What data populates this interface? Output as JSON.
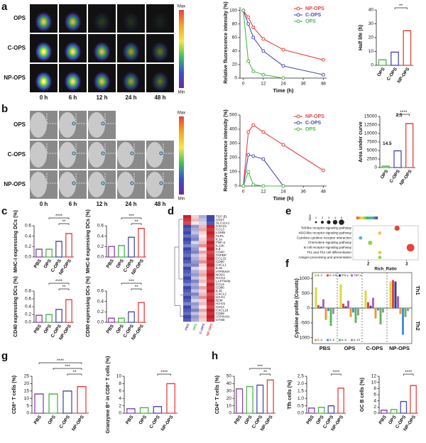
{
  "panel_labels": [
    "a",
    "b",
    "c",
    "d",
    "e",
    "f",
    "g",
    "h"
  ],
  "image_panels": [
    {
      "rows": [
        "OPS",
        "C-OPS",
        "NP-OPS"
      ],
      "columns": [
        "0 h",
        "6 h",
        "12 h",
        "24 h",
        "48 h"
      ],
      "colorbar": [
        "Max",
        "Min"
      ]
    },
    {
      "rows": [
        "OPS",
        "C-OPS",
        "NP-OPS"
      ],
      "columns": [
        "0 h",
        "6 h",
        "12 h",
        "24 h",
        "48 h"
      ],
      "colorbar": [
        "Max",
        "Min"
      ]
    }
  ],
  "chart_data": [
    {
      "type": "line",
      "ylabel": "Relative fluorescence intensity (%)",
      "xlabel": "Time (h)",
      "x": [
        0,
        3,
        6,
        12,
        24,
        48
      ],
      "xlim": [
        -2,
        50
      ],
      "xticks": [
        0,
        12,
        24,
        36,
        48
      ],
      "ylim": [
        0,
        105
      ],
      "yticks": [
        0,
        20,
        40,
        60,
        80,
        100
      ],
      "legend": "top-right",
      "series": [
        {
          "name": "NP-OPS",
          "color": "#e8413f",
          "values": [
            100,
            90,
            75,
            58,
            42,
            27
          ]
        },
        {
          "name": "C-OPS",
          "color": "#4a4fb0",
          "values": [
            100,
            80,
            60,
            40,
            18,
            5
          ]
        },
        {
          "name": "OPS",
          "color": "#4cb848",
          "values": [
            100,
            25,
            10,
            5,
            0,
            null
          ]
        }
      ]
    },
    {
      "type": "bar",
      "ylabel": "Half life (h)",
      "categories": [
        "OPS",
        "C-OPS",
        "NP-OPS"
      ],
      "colors": [
        "#4cb848",
        "#4a4fb0",
        "#e8413f"
      ],
      "values": [
        4,
        9.5,
        25
      ],
      "ylim": [
        0,
        40
      ],
      "yticks": [
        0,
        10,
        20,
        30,
        40
      ],
      "annotations": [
        "**"
      ]
    },
    {
      "type": "line",
      "ylabel": "Relative fluorescence intensity (%)",
      "xlabel": "Time (h)",
      "x": [
        0,
        3,
        6,
        12,
        24,
        48
      ],
      "xlim": [
        -2,
        50
      ],
      "xticks": [
        0,
        12,
        24,
        36,
        48
      ],
      "ylim": [
        0,
        500
      ],
      "yticks": [
        0,
        100,
        200,
        300,
        400,
        500
      ],
      "legend": "top-right",
      "series": [
        {
          "name": "NP-OPS",
          "color": "#e8413f",
          "values": [
            0,
            380,
            430,
            380,
            290,
            110
          ]
        },
        {
          "name": "C-OPS",
          "color": "#4a4fb0",
          "values": [
            0,
            220,
            210,
            190,
            0,
            null
          ]
        },
        {
          "name": "OPS",
          "color": "#4cb848",
          "values": [
            0,
            100,
            10,
            0,
            0,
            null
          ]
        }
      ]
    },
    {
      "type": "bar",
      "ylabel": "Area under curve",
      "categories": [
        "OPS",
        "C-OPS",
        "NP-OPS"
      ],
      "colors": [
        "#4cb848",
        "#4a4fb0",
        "#e8413f"
      ],
      "values": [
        400,
        4900,
        12900
      ],
      "ylim": [
        0,
        15000
      ],
      "yticks": [
        0,
        2500,
        5000,
        7500,
        10000,
        12500,
        15000
      ],
      "annotations": [
        "****"
      ],
      "notes": [
        "14.5",
        "2.5"
      ]
    },
    {
      "type": "bar",
      "ylabel": "MHC-I expressing DCs (%)",
      "categories": [
        "PBS",
        "OPS",
        "C-OPS",
        "NP-OPS"
      ],
      "colors": [
        "#8e44ad",
        "#4cb848",
        "#4a4fb0",
        "#e8413f"
      ],
      "values": [
        0.15,
        0.15,
        0.3,
        0.45
      ],
      "ylim": [
        0,
        0.6
      ],
      "yticks": [
        {
          "value": 0,
          "label": "0.0"
        },
        0.2,
        0.4,
        0.6
      ],
      "annotations": [
        "**",
        "****"
      ]
    },
    {
      "type": "bar",
      "ylabel": "MHC-II expressing DCs (%)",
      "categories": [
        "PBS",
        "OPS",
        "C-OPS",
        "NP-OPS"
      ],
      "colors": [
        "#8e44ad",
        "#4cb848",
        "#4a4fb0",
        "#e8413f"
      ],
      "values": [
        0.2,
        0.22,
        0.38,
        0.55
      ],
      "ylim": [
        0,
        0.6
      ],
      "yticks": [
        {
          "value": 0,
          "label": "0.0"
        },
        0.2,
        0.4,
        0.6
      ],
      "annotations": [
        "**",
        "***"
      ]
    },
    {
      "type": "bar",
      "ylabel": "CD40 expressing DCs (%)",
      "categories": [
        "PBS",
        "OPS",
        "C-OPS",
        "NP-OPS"
      ],
      "colors": [
        "#8e44ad",
        "#4cb848",
        "#4a4fb0",
        "#e8413f"
      ],
      "values": [
        0.18,
        0.2,
        0.33,
        0.58
      ],
      "ylim": [
        0,
        0.8
      ],
      "yticks": [
        {
          "value": 0,
          "label": "0.0"
        },
        0.2,
        0.4,
        0.6,
        0.8
      ],
      "annotations": [
        "**",
        "****"
      ]
    },
    {
      "type": "bar",
      "ylabel": "CD80 expressing DCs (%)",
      "categories": [
        "PBS",
        "OPS",
        "C-OPS",
        "NP-OPS"
      ],
      "colors": [
        "#8e44ad",
        "#4cb848",
        "#4a4fb0",
        "#e8413f"
      ],
      "values": [
        0.08,
        0.08,
        0.2,
        0.38
      ],
      "ylim": [
        0,
        0.6
      ],
      "yticks": [
        {
          "value": 0,
          "label": "0.0"
        },
        0.2,
        0.4,
        0.6
      ],
      "annotations": [
        "**",
        "***"
      ]
    },
    {
      "type": "heatmap",
      "categories": [
        "PBS",
        "OPS",
        "C-OPS",
        "NP-OPS"
      ],
      "category_colors": [
        "#8e44ad",
        "#4cb848",
        "#4a4fb0",
        "#e8413f"
      ],
      "zlim": [
        -1,
        1
      ],
      "rows": [
        "TGF-β1",
        "CD47",
        "SLC11A1",
        "CXCL5",
        "CCL3",
        "LGMN",
        "TLR1",
        "IL1a",
        "TNF-α",
        "IL12b",
        "IL6",
        "CD40",
        "TAPBP",
        "CCL22",
        "CD80",
        "CXCL1",
        "IL15",
        "ATP6V0A",
        "NOD1",
        "H2-K2",
        "LAPTM4b",
        "CCL5",
        "CD86",
        "IL1b",
        "CXCL2",
        "H2-K1",
        "B2M",
        "H2-D1",
        "CD14",
        "CXCL16",
        "CD68",
        "ATP6V0A",
        "CTSB"
      ],
      "values": [
        [
          1,
          0.2,
          -0.4,
          -0.9
        ],
        [
          0.9,
          0.3,
          -0.3,
          -0.9
        ],
        [
          0.8,
          0.1,
          -0.2,
          -0.8
        ],
        [
          -0.9,
          -0.5,
          0.3,
          1
        ],
        [
          -0.8,
          -0.4,
          0.4,
          0.9
        ],
        [
          -0.9,
          -0.3,
          0.2,
          1
        ],
        [
          -0.7,
          -0.5,
          0.1,
          0.9
        ],
        [
          -0.9,
          -0.6,
          0.2,
          0.8
        ],
        [
          -0.8,
          -0.2,
          0.3,
          1
        ],
        [
          -0.6,
          -0.4,
          0.5,
          0.9
        ],
        [
          -0.9,
          -0.5,
          0.1,
          1
        ],
        [
          -0.8,
          -0.6,
          0.4,
          0.8
        ],
        [
          -0.7,
          -0.3,
          0.2,
          0.9
        ],
        [
          -0.9,
          -0.4,
          0.3,
          1
        ],
        [
          -0.8,
          -0.5,
          0.5,
          0.9
        ],
        [
          -0.6,
          -0.6,
          0.2,
          1
        ],
        [
          -0.9,
          -0.2,
          0.1,
          0.8
        ],
        [
          -0.8,
          -0.4,
          0.3,
          0.9
        ],
        [
          -0.7,
          -0.5,
          0.4,
          1
        ],
        [
          -0.9,
          -0.3,
          0.2,
          0.9
        ],
        [
          -0.8,
          -0.6,
          0.3,
          0.8
        ],
        [
          -0.6,
          -0.4,
          0.1,
          1
        ],
        [
          -0.9,
          -0.5,
          0.4,
          0.9
        ],
        [
          -0.8,
          -0.3,
          0.2,
          1
        ],
        [
          -0.7,
          -0.6,
          0.3,
          0.8
        ],
        [
          -0.9,
          -0.4,
          0.5,
          0.9
        ],
        [
          -0.8,
          -0.2,
          0.2,
          1
        ],
        [
          -0.6,
          -0.5,
          0.3,
          0.9
        ],
        [
          -0.9,
          -0.4,
          0.1,
          0.8
        ],
        [
          -0.8,
          -0.6,
          0.4,
          1
        ],
        [
          -0.7,
          -0.3,
          0.2,
          0.9
        ],
        [
          -0.9,
          -0.5,
          0.3,
          1
        ],
        [
          -0.8,
          -0.4,
          0.2,
          0.9
        ]
      ]
    },
    {
      "type": "bubble",
      "xlabel": "Rich_Ratio",
      "size_label": "Size",
      "size_legend": [
        1,
        2,
        3,
        4,
        5
      ],
      "pathways": [
        "Toll-like receptor signaling pathway",
        "NOD-like receptor signaling pathway",
        "Cytokine-cytokine receptor interaction",
        "Chemokine signaling pathway",
        "B cell receptor signaling pathway",
        "Th1 and Th2 cell differentiation",
        "Antigen processing and presentation"
      ],
      "x": [
        2.75,
        2.3,
        1.8,
        2.05,
        3.1,
        2.3,
        2.3
      ],
      "sizes": [
        2,
        1,
        1,
        1.5,
        3.5,
        1,
        1
      ],
      "colors": [
        "#e8413f",
        "#f5c542",
        "#4cb8c4",
        "#8fd14f",
        "#e8413f",
        "#f5c542",
        "#9ad14f"
      ],
      "xlim": [
        1.6,
        3.3
      ],
      "xticks": [
        2,
        3
      ]
    },
    {
      "type": "grouped_bar",
      "ylabel": "Cytokine profile (Counts)",
      "categories": [
        "PBS",
        "OPS",
        "C-OPS",
        "NP-OPS"
      ],
      "group_labels": [
        "Th1",
        "Th2"
      ],
      "ylim": [
        -1200,
        1200
      ],
      "yticks": [
        -1000,
        -500,
        0,
        500,
        1000
      ],
      "series": [
        {
          "name": "IL-2",
          "color": "#d9d93a",
          "values": [
            700,
            800,
            600,
            900
          ]
        },
        {
          "name": "IL-12b",
          "color": "#e8413f",
          "values": [
            100,
            150,
            200,
            950
          ]
        },
        {
          "name": "IFN-γ",
          "color": "#3b3b98",
          "values": [
            50,
            60,
            80,
            900
          ]
        },
        {
          "name": "TNF-α",
          "color": "#b05fc4",
          "values": [
            300,
            250,
            350,
            400
          ]
        },
        {
          "name": "IL-4",
          "color": "#e89a3f",
          "values": [
            -400,
            -300,
            -350,
            -200
          ]
        },
        {
          "name": "IL-5",
          "color": "#4a90d9",
          "values": [
            -100,
            -150,
            -80,
            -900
          ]
        },
        {
          "name": "IL-6",
          "color": "#5cb85c",
          "values": [
            -600,
            -500,
            -550,
            -300
          ]
        },
        {
          "name": "IL-10",
          "color": "#999999",
          "values": [
            -200,
            -250,
            -150,
            -100
          ]
        }
      ]
    },
    {
      "type": "bar",
      "ylabel": "CD8⁺ T cells (%)",
      "categories": [
        "PBS",
        "OPS",
        "C-OPS",
        "NP-OPS"
      ],
      "colors": [
        "#8e44ad",
        "#4cb848",
        "#4a4fb0",
        "#e8413f"
      ],
      "values": [
        13,
        13,
        15,
        18
      ],
      "ylim": [
        0,
        25
      ],
      "yticks": [
        0,
        5,
        10,
        15,
        20,
        25
      ],
      "annotations": [
        "**",
        "***",
        "****"
      ]
    },
    {
      "type": "bar",
      "ylabel": "Granzyme B⁺ in CD8⁺ T cells (%)",
      "categories": [
        "PBS",
        "OPS",
        "C-OPS",
        "NP-OPS"
      ],
      "colors": [
        "#8e44ad",
        "#4cb848",
        "#4a4fb0",
        "#e8413f"
      ],
      "values": [
        1.2,
        1.5,
        1.8,
        8
      ],
      "ylim": [
        0,
        10
      ],
      "yticks": [
        0,
        2,
        4,
        6,
        8,
        10
      ],
      "annotations": [
        "****"
      ]
    },
    {
      "type": "bar",
      "ylabel": "CD4⁺ T cells (%)",
      "categories": [
        "PBS",
        "OPS",
        "C-OPS",
        "NP-OPS"
      ],
      "colors": [
        "#8e44ad",
        "#4cb848",
        "#4a4fb0",
        "#e8413f"
      ],
      "values": [
        33,
        36,
        38,
        45
      ],
      "ylim": [
        0,
        50
      ],
      "yticks": [
        0,
        10,
        20,
        30,
        40,
        50
      ],
      "annotations": [
        "**",
        "***"
      ]
    },
    {
      "type": "bar",
      "ylabel": "Tfh cells (%)",
      "categories": [
        "PBS",
        "OPS",
        "C-OPS",
        "NP-OPS"
      ],
      "colors": [
        "#8e44ad",
        "#4cb848",
        "#4a4fb0",
        "#e8413f"
      ],
      "values": [
        0.35,
        0.4,
        0.5,
        1.7
      ],
      "ylim": [
        0,
        2.5
      ],
      "yticks": [
        {
          "value": 0,
          "label": "0.0"
        },
        0.5,
        {
          "value": 1,
          "label": "1.0"
        },
        1.5,
        {
          "value": 2,
          "label": "2.0"
        },
        2.5
      ],
      "annotations": [
        "****"
      ]
    },
    {
      "type": "bar",
      "ylabel": "GC B cells (%)",
      "categories": [
        "PBS",
        "OPS",
        "C-OPS",
        "NP-OPS"
      ],
      "colors": [
        "#8e44ad",
        "#4cb848",
        "#4a4fb0",
        "#e8413f"
      ],
      "values": [
        1,
        1.2,
        3.8,
        9
      ],
      "ylim": [
        0,
        12
      ],
      "yticks": [
        0,
        2,
        4,
        6,
        8,
        10,
        12
      ],
      "annotations": [
        "****"
      ]
    }
  ]
}
